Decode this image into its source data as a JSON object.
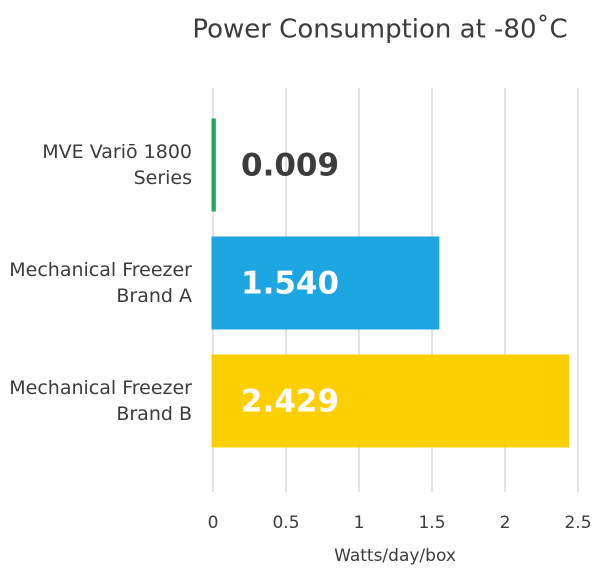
{
  "chart_data": {
    "type": "bar",
    "orientation": "horizontal",
    "title": "Power Consumption at -80˚C",
    "categories": [
      "MVE Variō 1800 Series",
      "Mechanical Freezer Brand A",
      "Mechanical Freezer Brand B"
    ],
    "values": [
      0.009,
      1.54,
      2.429
    ],
    "value_labels": [
      "0.009",
      "1.540",
      "2.429"
    ],
    "colors": [
      "#1ea85a",
      "#1ea6e2",
      "#fcd000"
    ],
    "xlabel": "Watts/day/box",
    "xlim": [
      0,
      2.5
    ],
    "xticks": [
      0,
      0.5,
      1,
      1.5,
      2,
      2.5
    ],
    "grid": true
  }
}
